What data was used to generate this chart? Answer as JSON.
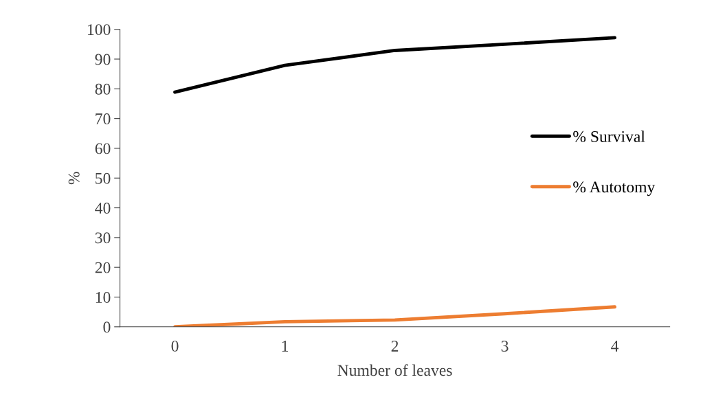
{
  "chart_data": {
    "type": "line",
    "xlabel": "Number of leaves",
    "ylabel": "%",
    "categories": [
      "0",
      "1",
      "2",
      "3",
      "4"
    ],
    "series": [
      {
        "name": "% Survival",
        "color": "#000000",
        "values": [
          78.9,
          87.9,
          92.9,
          95.0,
          97.2
        ]
      },
      {
        "name": "% Autotomy",
        "color": "#ed7d31",
        "values": [
          0,
          1.7,
          2.3,
          4.4,
          6.7
        ]
      }
    ],
    "ylim": [
      0,
      100
    ],
    "yticks": [
      0,
      10,
      20,
      30,
      40,
      50,
      60,
      70,
      80,
      90,
      100
    ],
    "grid": false,
    "legend": "right",
    "marker": "none",
    "line_style": "solid"
  }
}
